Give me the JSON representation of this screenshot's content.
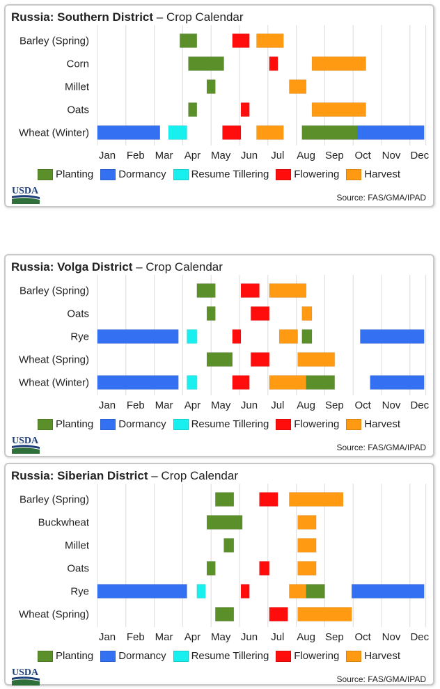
{
  "colors": {
    "Planting": "#5b8f29",
    "Dormancy": "#3370f2",
    "Resume Tillering": "#18f0f0",
    "Flowering": "#ff0d0d",
    "Harvest": "#ff9a12"
  },
  "months": [
    "Jan",
    "Feb",
    "Mar",
    "Apr",
    "May",
    "Jun",
    "Jul",
    "Aug",
    "Sep",
    "Oct",
    "Nov",
    "Dec"
  ],
  "legend": [
    "Planting",
    "Dormancy",
    "Resume Tillering",
    "Flowering",
    "Harvest"
  ],
  "logo_text": "USDA",
  "source": "Source: FAS/GMA/IPAD",
  "panels": [
    {
      "title_bold": "Russia: Southern District",
      "title_rest": "– Crop Calendar"
    },
    {
      "title_bold": "Russia: Volga District",
      "title_rest": "– Crop Calendar"
    },
    {
      "title_bold": "Russia: Siberian District",
      "title_rest": "– Crop Calendar"
    }
  ],
  "chart_data": [
    {
      "type": "gantt",
      "title": "Russia: Southern District – Crop Calendar",
      "x_axis": [
        "Jan",
        "Feb",
        "Mar",
        "Apr",
        "May",
        "Jun",
        "Jul",
        "Aug",
        "Sep",
        "Oct",
        "Nov",
        "Dec"
      ],
      "x_unit": "month (0 = start of Jan, 12 = end of Dec)",
      "rows": [
        {
          "crop": "Barley (Spring)",
          "segments": [
            {
              "stage": "Planting",
              "start": 2.9,
              "end": 3.5
            },
            {
              "stage": "Flowering",
              "start": 4.75,
              "end": 5.35
            },
            {
              "stage": "Harvest",
              "start": 5.6,
              "end": 6.55
            }
          ]
        },
        {
          "crop": "Corn",
          "segments": [
            {
              "stage": "Planting",
              "start": 3.2,
              "end": 4.45
            },
            {
              "stage": "Flowering",
              "start": 6.05,
              "end": 6.35
            },
            {
              "stage": "Harvest",
              "start": 7.55,
              "end": 9.45
            }
          ]
        },
        {
          "crop": "Millet",
          "segments": [
            {
              "stage": "Planting",
              "start": 3.85,
              "end": 4.15
            },
            {
              "stage": "Harvest",
              "start": 6.75,
              "end": 7.35
            }
          ]
        },
        {
          "crop": "Oats",
          "segments": [
            {
              "stage": "Planting",
              "start": 3.2,
              "end": 3.5
            },
            {
              "stage": "Flowering",
              "start": 5.05,
              "end": 5.35
            },
            {
              "stage": "Harvest",
              "start": 7.55,
              "end": 9.45
            }
          ]
        },
        {
          "crop": "Wheat (Winter)",
          "segments": [
            {
              "stage": "Dormancy",
              "start": 0.0,
              "end": 2.2
            },
            {
              "stage": "Resume Tillering",
              "start": 2.5,
              "end": 3.15
            },
            {
              "stage": "Flowering",
              "start": 4.4,
              "end": 5.05
            },
            {
              "stage": "Harvest",
              "start": 5.6,
              "end": 6.55
            },
            {
              "stage": "Planting",
              "start": 7.2,
              "end": 9.15
            },
            {
              "stage": "Dormancy",
              "start": 9.15,
              "end": 11.5
            }
          ]
        }
      ]
    },
    {
      "type": "gantt",
      "title": "Russia: Volga District – Crop Calendar",
      "x_axis": [
        "Jan",
        "Feb",
        "Mar",
        "Apr",
        "May",
        "Jun",
        "Jul",
        "Aug",
        "Sep",
        "Oct",
        "Nov",
        "Dec"
      ],
      "x_unit": "month (0 = start of Jan, 12 = end of Dec)",
      "rows": [
        {
          "crop": "Barley (Spring)",
          "segments": [
            {
              "stage": "Planting",
              "start": 3.5,
              "end": 4.15
            },
            {
              "stage": "Flowering",
              "start": 5.05,
              "end": 5.7
            },
            {
              "stage": "Harvest",
              "start": 6.05,
              "end": 7.35
            }
          ]
        },
        {
          "crop": "Oats",
          "segments": [
            {
              "stage": "Planting",
              "start": 3.85,
              "end": 4.15
            },
            {
              "stage": "Flowering",
              "start": 5.4,
              "end": 6.05
            },
            {
              "stage": "Harvest",
              "start": 7.2,
              "end": 7.55
            }
          ]
        },
        {
          "crop": "Rye",
          "segments": [
            {
              "stage": "Dormancy",
              "start": 0.0,
              "end": 2.85
            },
            {
              "stage": "Resume Tillering",
              "start": 3.15,
              "end": 3.5
            },
            {
              "stage": "Flowering",
              "start": 4.75,
              "end": 5.05
            },
            {
              "stage": "Harvest",
              "start": 6.4,
              "end": 7.05
            },
            {
              "stage": "Planting",
              "start": 7.2,
              "end": 7.55
            },
            {
              "stage": "Dormancy",
              "start": 9.25,
              "end": 11.5
            }
          ]
        },
        {
          "crop": "Wheat (Spring)",
          "segments": [
            {
              "stage": "Planting",
              "start": 3.85,
              "end": 4.75
            },
            {
              "stage": "Flowering",
              "start": 5.4,
              "end": 6.05
            },
            {
              "stage": "Harvest",
              "start": 7.05,
              "end": 8.35
            }
          ]
        },
        {
          "crop": "Wheat (Winter)",
          "segments": [
            {
              "stage": "Dormancy",
              "start": 0.0,
              "end": 2.85
            },
            {
              "stage": "Resume Tillering",
              "start": 3.15,
              "end": 3.5
            },
            {
              "stage": "Flowering",
              "start": 4.75,
              "end": 5.35
            },
            {
              "stage": "Harvest",
              "start": 6.05,
              "end": 7.35
            },
            {
              "stage": "Planting",
              "start": 7.35,
              "end": 8.35
            },
            {
              "stage": "Dormancy",
              "start": 9.6,
              "end": 11.5
            }
          ]
        }
      ]
    },
    {
      "type": "gantt",
      "title": "Russia: Siberian District – Crop Calendar",
      "x_axis": [
        "Jan",
        "Feb",
        "Mar",
        "Apr",
        "May",
        "Jun",
        "Jul",
        "Aug",
        "Sep",
        "Oct",
        "Nov",
        "Dec"
      ],
      "x_unit": "month (0 = start of Jan, 12 = end of Dec)",
      "rows": [
        {
          "crop": "Barley (Spring)",
          "segments": [
            {
              "stage": "Planting",
              "start": 4.15,
              "end": 4.8
            },
            {
              "stage": "Flowering",
              "start": 5.7,
              "end": 6.35
            },
            {
              "stage": "Harvest",
              "start": 6.75,
              "end": 8.65
            }
          ]
        },
        {
          "crop": "Buckwheat",
          "segments": [
            {
              "stage": "Planting",
              "start": 3.85,
              "end": 5.1
            },
            {
              "stage": "Harvest",
              "start": 7.05,
              "end": 7.7
            }
          ]
        },
        {
          "crop": "Millet",
          "segments": [
            {
              "stage": "Planting",
              "start": 4.45,
              "end": 4.8
            },
            {
              "stage": "Harvest",
              "start": 7.05,
              "end": 7.7
            }
          ]
        },
        {
          "crop": "Oats",
          "segments": [
            {
              "stage": "Planting",
              "start": 3.85,
              "end": 4.15
            },
            {
              "stage": "Flowering",
              "start": 5.7,
              "end": 6.05
            },
            {
              "stage": "Harvest",
              "start": 7.05,
              "end": 7.7
            }
          ]
        },
        {
          "crop": "Rye",
          "segments": [
            {
              "stage": "Dormancy",
              "start": 0.0,
              "end": 3.15
            },
            {
              "stage": "Resume Tillering",
              "start": 3.5,
              "end": 3.8
            },
            {
              "stage": "Flowering",
              "start": 5.05,
              "end": 5.35
            },
            {
              "stage": "Harvest",
              "start": 6.75,
              "end": 7.35
            },
            {
              "stage": "Planting",
              "start": 7.35,
              "end": 8.0
            },
            {
              "stage": "Dormancy",
              "start": 8.95,
              "end": 11.5
            }
          ]
        },
        {
          "crop": "Wheat (Spring)",
          "segments": [
            {
              "stage": "Planting",
              "start": 4.15,
              "end": 4.8
            },
            {
              "stage": "Flowering",
              "start": 6.05,
              "end": 6.7
            },
            {
              "stage": "Harvest",
              "start": 7.05,
              "end": 8.95
            }
          ]
        }
      ]
    }
  ]
}
